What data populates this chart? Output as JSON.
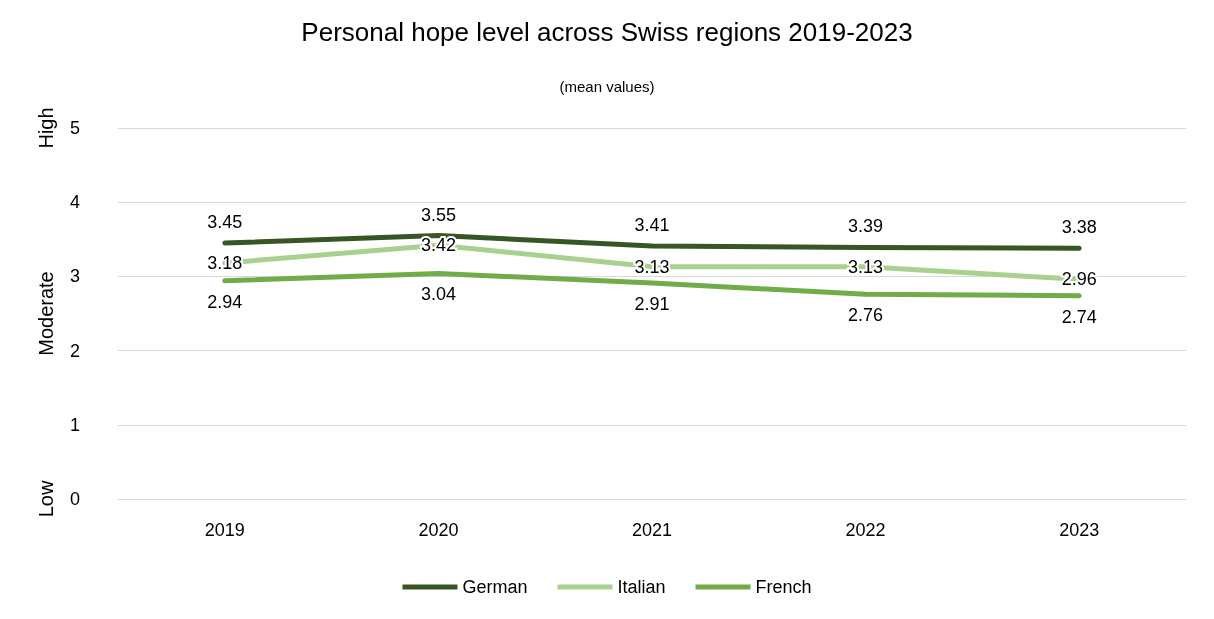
{
  "chart_data": {
    "type": "line",
    "title": "Personal hope level across Swiss regions 2019-2023",
    "subtitle": "(mean values)",
    "categories": [
      "2019",
      "2020",
      "2021",
      "2022",
      "2023"
    ],
    "series": [
      {
        "name": "German",
        "color": "#375623",
        "values": [
          3.45,
          3.55,
          3.41,
          3.39,
          3.38
        ]
      },
      {
        "name": "Italian",
        "color": "#a9d18e",
        "values": [
          3.18,
          3.42,
          3.13,
          3.13,
          2.96
        ]
      },
      {
        "name": "French",
        "color": "#70ad47",
        "values": [
          2.94,
          3.04,
          2.91,
          2.76,
          2.74
        ]
      }
    ],
    "ylim": [
      0,
      5
    ],
    "yticks": [
      0,
      1,
      2,
      3,
      4,
      5
    ],
    "grid": "y",
    "legend": "bottom",
    "marker": "none",
    "line_style": "solid",
    "data_labels": true,
    "annotations": [
      "Low",
      "Moderate",
      "High"
    ]
  }
}
